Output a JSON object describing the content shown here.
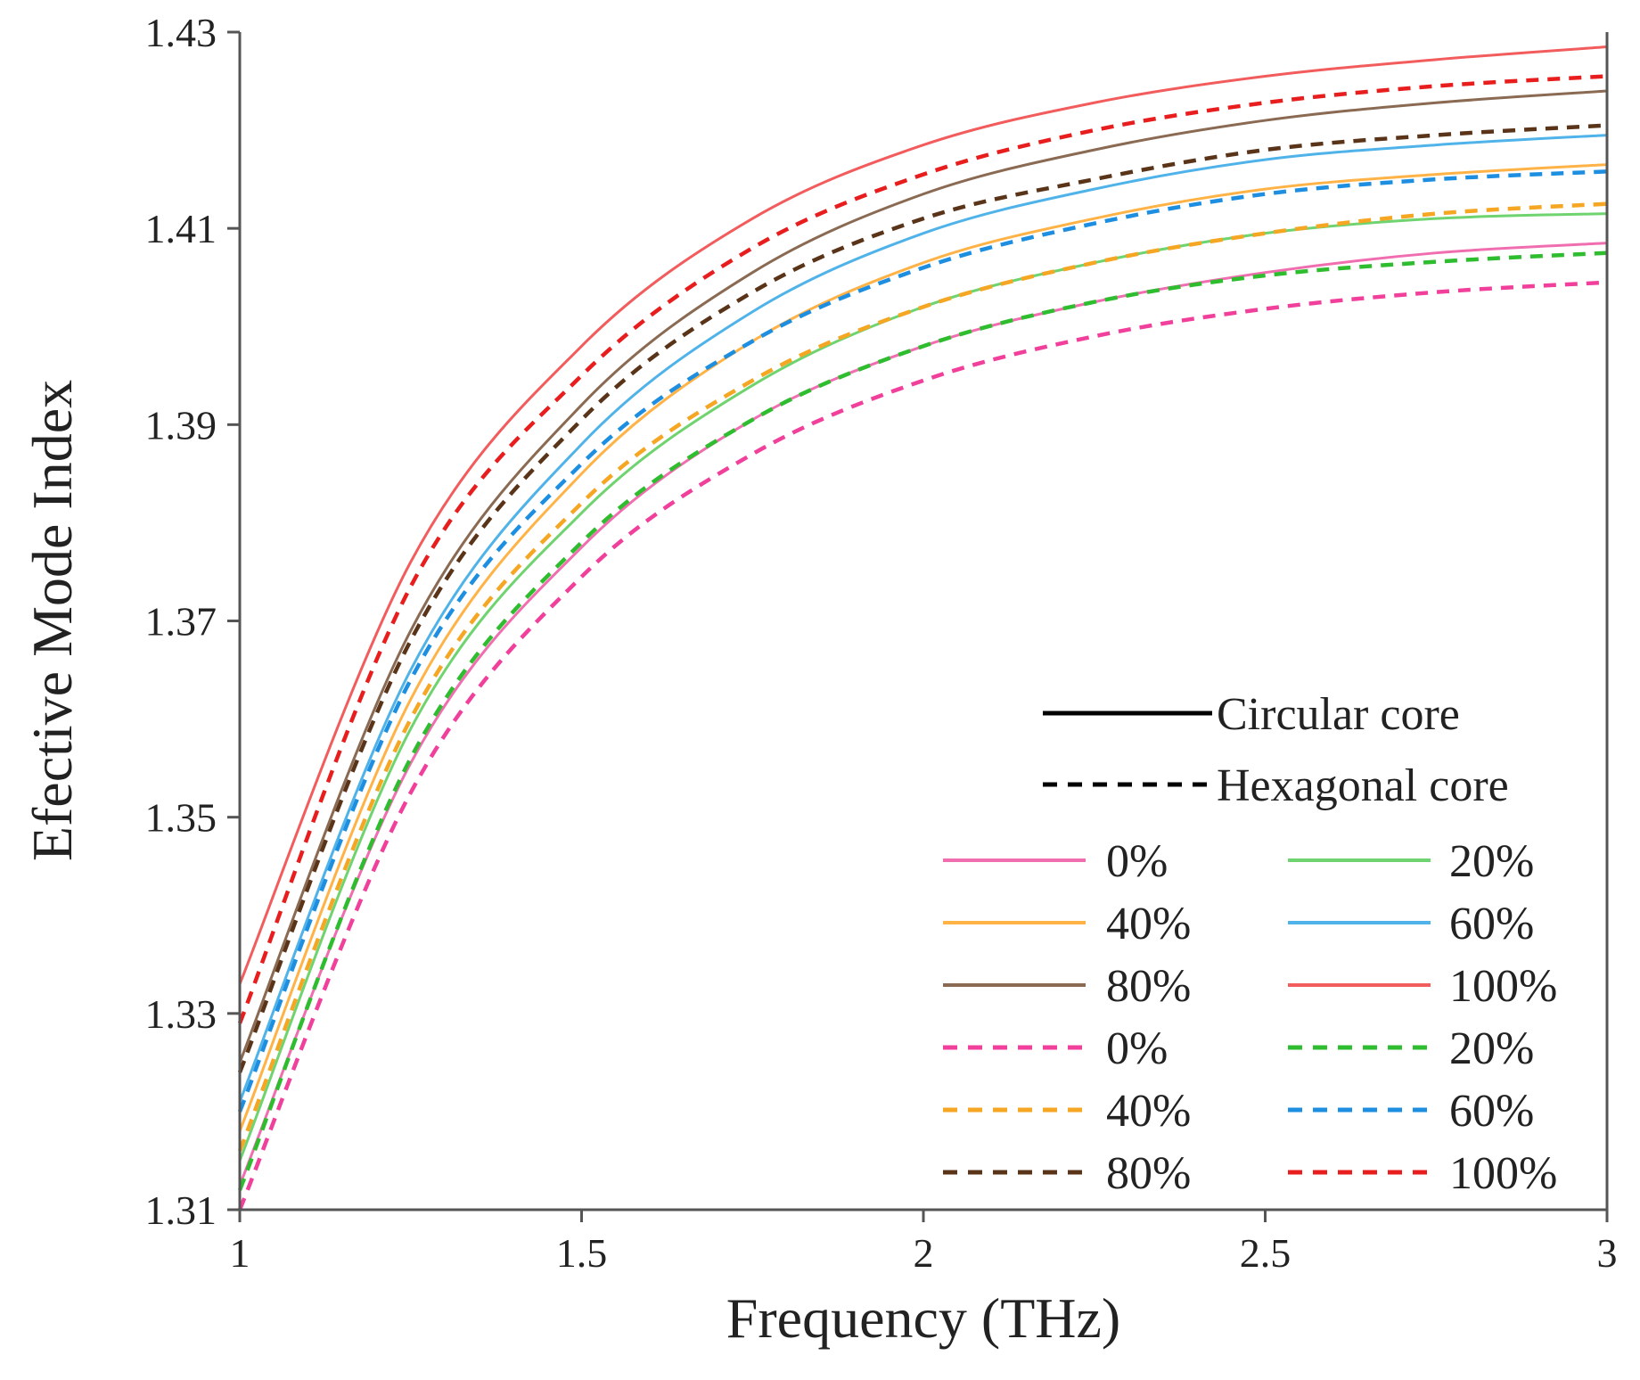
{
  "chart_data": {
    "type": "line",
    "title": "",
    "xlabel": "Frequency (THz)",
    "ylabel": "Efective Mode Index",
    "xlim": [
      1,
      3
    ],
    "ylim": [
      1.31,
      1.43
    ],
    "xticks": [
      "1",
      "1.5",
      "2",
      "2.5",
      "3"
    ],
    "yticks": [
      "1.31",
      "1.33",
      "1.35",
      "1.37",
      "1.39",
      "1.41",
      "1.43"
    ],
    "grid": false,
    "legend_position": "bottom-right",
    "legend_style": [
      {
        "label": "Circular core",
        "dash": "solid",
        "color": "#000000"
      },
      {
        "label": "Hexagonal core",
        "dash": "dashed",
        "color": "#000000"
      }
    ],
    "x": [
      1.0,
      1.25,
      1.5,
      1.75,
      2.0,
      2.25,
      2.5,
      2.75,
      3.0
    ],
    "series": [
      {
        "name": "0%",
        "core": "circular",
        "dash": "solid",
        "color": "#f06eb0",
        "values": [
          1.3125,
          1.3555,
          1.3775,
          1.3905,
          1.398,
          1.4025,
          1.4055,
          1.4075,
          1.4085
        ]
      },
      {
        "name": "20%",
        "core": "circular",
        "dash": "solid",
        "color": "#6fd36f",
        "values": [
          1.315,
          1.359,
          1.381,
          1.394,
          1.402,
          1.4065,
          1.4095,
          1.411,
          1.4115
        ]
      },
      {
        "name": "40%",
        "core": "circular",
        "dash": "solid",
        "color": "#ffb347",
        "values": [
          1.318,
          1.362,
          1.385,
          1.3985,
          1.4065,
          1.411,
          1.414,
          1.4155,
          1.4165
        ]
      },
      {
        "name": "60%",
        "core": "circular",
        "dash": "solid",
        "color": "#4fb3ea",
        "values": [
          1.321,
          1.365,
          1.388,
          1.4015,
          1.4095,
          1.414,
          1.417,
          1.4185,
          1.4195
        ]
      },
      {
        "name": "80%",
        "core": "circular",
        "dash": "solid",
        "color": "#8a6a52",
        "values": [
          1.325,
          1.369,
          1.392,
          1.4055,
          1.4135,
          1.418,
          1.421,
          1.4228,
          1.424
        ]
      },
      {
        "name": "100%",
        "core": "circular",
        "dash": "solid",
        "color": "#f25c5c",
        "values": [
          1.333,
          1.376,
          1.398,
          1.411,
          1.4185,
          1.4228,
          1.4255,
          1.4272,
          1.4285
        ]
      },
      {
        "name": "0%",
        "core": "hexagonal",
        "dash": "dashed",
        "color": "#f0409b",
        "values": [
          1.31,
          1.3525,
          1.3745,
          1.387,
          1.3945,
          1.399,
          1.4018,
          1.4035,
          1.4045
        ]
      },
      {
        "name": "20%",
        "core": "hexagonal",
        "dash": "dashed",
        "color": "#2ebd2e",
        "values": [
          1.312,
          1.356,
          1.378,
          1.3905,
          1.398,
          1.4025,
          1.4052,
          1.4066,
          1.4075
        ]
      },
      {
        "name": "40%",
        "core": "hexagonal",
        "dash": "dashed",
        "color": "#f5a623",
        "values": [
          1.316,
          1.36,
          1.382,
          1.3945,
          1.402,
          1.4065,
          1.4095,
          1.4115,
          1.4125
        ]
      },
      {
        "name": "60%",
        "core": "hexagonal",
        "dash": "dashed",
        "color": "#1e8fe0",
        "values": [
          1.32,
          1.364,
          1.386,
          1.3985,
          1.406,
          1.4105,
          1.4135,
          1.415,
          1.4158
        ]
      },
      {
        "name": "80%",
        "core": "hexagonal",
        "dash": "dashed",
        "color": "#5a3418",
        "values": [
          1.324,
          1.368,
          1.3905,
          1.4035,
          1.411,
          1.415,
          1.418,
          1.4195,
          1.4205
        ]
      },
      {
        "name": "100%",
        "core": "hexagonal",
        "dash": "dashed",
        "color": "#e81e1e",
        "values": [
          1.329,
          1.3735,
          1.395,
          1.408,
          1.4155,
          1.42,
          1.4228,
          1.4245,
          1.4255
        ]
      }
    ]
  }
}
